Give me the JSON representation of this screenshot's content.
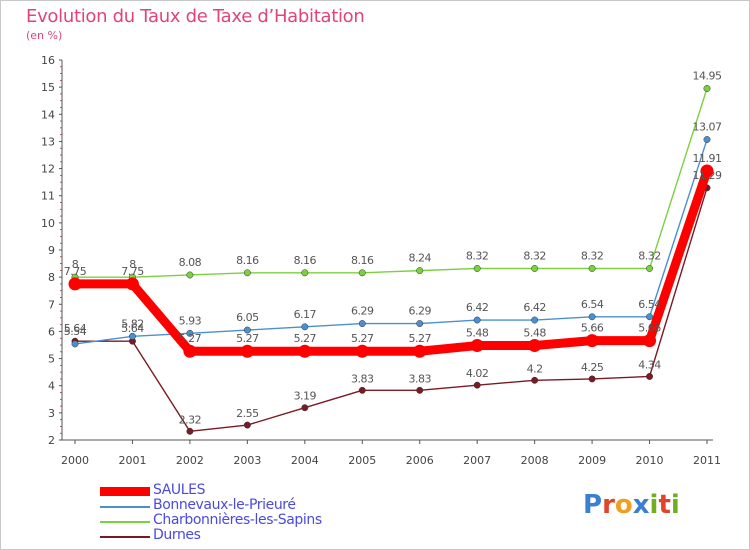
{
  "title": "Evolution du Taux de Taxe d’Habitation",
  "unit": "(en %)",
  "logo": {
    "text": "Proxiti",
    "letters": [
      "P",
      "r",
      "o",
      "x",
      "i",
      "t",
      "i"
    ],
    "colors": [
      "#3a7fd0",
      "#e0442a",
      "#f0a020",
      "#3a7fd0",
      "#70b020",
      "#e0442a",
      "#70b020"
    ]
  },
  "chart_data": {
    "type": "line",
    "x": [
      "2000",
      "2001",
      "2002",
      "2003",
      "2004",
      "2005",
      "2006",
      "2007",
      "2008",
      "2009",
      "2010",
      "2011"
    ],
    "ylim": [
      2,
      16
    ],
    "yticks": [
      "2",
      "3",
      "4",
      "5",
      "6",
      "7",
      "8",
      "9",
      "10",
      "11",
      "12",
      "13",
      "14",
      "15",
      "16"
    ],
    "grid": false,
    "legend_position": "bottom-left",
    "series": [
      {
        "name": "SAULES",
        "color": "#ff0000",
        "values": [
          7.75,
          7.75,
          5.27,
          5.27,
          5.27,
          5.27,
          5.27,
          5.48,
          5.48,
          5.66,
          5.66,
          11.91
        ],
        "labels": [
          "7.75",
          "7.75",
          "5.27",
          "5.27",
          "5.27",
          "5.27",
          "5.27",
          "5.48",
          "5.48",
          "5.66",
          "5.66",
          "11.91"
        ]
      },
      {
        "name": "Bonnevaux-le-Prieuré",
        "color": "#4a90d0",
        "values": [
          5.54,
          5.82,
          5.93,
          6.05,
          6.17,
          6.29,
          6.29,
          6.42,
          6.42,
          6.54,
          6.54,
          13.07
        ],
        "labels": [
          "5.54",
          "5.82",
          "5.93",
          "6.05",
          "6.17",
          "6.29",
          "6.29",
          "6.42",
          "6.42",
          "6.54",
          "6.54",
          "13.07"
        ]
      },
      {
        "name": "Charbonnières-les-Sapins",
        "color": "#7cd040",
        "values": [
          8,
          8,
          8.08,
          8.16,
          8.16,
          8.16,
          8.24,
          8.32,
          8.32,
          8.32,
          8.32,
          14.95
        ],
        "labels": [
          "8",
          "8",
          "8.08",
          "8.16",
          "8.16",
          "8.16",
          "8.24",
          "8.32",
          "8.32",
          "8.32",
          "8.32",
          "14.95"
        ]
      },
      {
        "name": "Durnes",
        "color": "#7a1a24",
        "values": [
          5.64,
          5.64,
          2.32,
          2.55,
          3.19,
          3.83,
          3.83,
          4.02,
          4.2,
          4.25,
          4.34,
          11.29
        ],
        "labels": [
          "5.64",
          "5.64",
          "2.32",
          "2.55",
          "3.19",
          "3.83",
          "3.83",
          "4.02",
          "4.2",
          "4.25",
          "4.34",
          "11.29"
        ]
      }
    ]
  }
}
